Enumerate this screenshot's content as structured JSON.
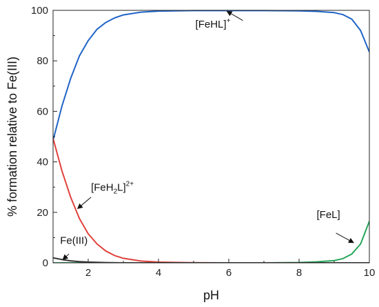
{
  "chart_data": {
    "type": "line",
    "xlabel": "pH",
    "ylabel": "% formation relative to Fe(III)",
    "xlim": [
      1,
      10
    ],
    "ylim": [
      0,
      100
    ],
    "x_ticks": [
      2,
      4,
      6,
      8,
      10
    ],
    "x_tick_labels": [
      "2",
      "4",
      "6",
      "8",
      "10"
    ],
    "y_ticks": [
      0,
      20,
      40,
      60,
      80,
      100
    ],
    "y_tick_labels": [
      "0",
      "20",
      "40",
      "60",
      "80",
      "100"
    ],
    "grid": false,
    "series": [
      {
        "color": "#1f63c6",
        "points": [
          [
            1.0,
            48.5
          ],
          [
            1.25,
            62
          ],
          [
            1.5,
            73
          ],
          [
            1.75,
            82
          ],
          [
            2.0,
            88
          ],
          [
            2.25,
            92.5
          ],
          [
            2.5,
            95.2
          ],
          [
            2.75,
            97
          ],
          [
            3.0,
            98.2
          ],
          [
            3.5,
            99.3
          ],
          [
            4.0,
            99.7
          ],
          [
            5.0,
            99.9
          ],
          [
            6.0,
            99.9
          ],
          [
            7.0,
            99.9
          ],
          [
            8.0,
            99.8
          ],
          [
            8.5,
            99.6
          ],
          [
            9.0,
            99.1
          ],
          [
            9.25,
            98.3
          ],
          [
            9.5,
            96.5
          ],
          [
            9.75,
            92
          ],
          [
            10.0,
            83.5
          ]
        ]
      },
      {
        "color": "#e0403a",
        "points": [
          [
            1.0,
            49.3
          ],
          [
            1.25,
            36.5
          ],
          [
            1.5,
            26
          ],
          [
            1.75,
            17.5
          ],
          [
            2.0,
            11.5
          ],
          [
            2.25,
            7.5
          ],
          [
            2.5,
            4.7
          ],
          [
            2.75,
            2.9
          ],
          [
            3.0,
            1.8
          ],
          [
            3.5,
            0.7
          ],
          [
            4.0,
            0.3
          ],
          [
            5.0,
            0.05
          ],
          [
            6.0,
            0
          ],
          [
            7.0,
            0
          ],
          [
            8.0,
            0
          ],
          [
            9.0,
            0
          ],
          [
            10.0,
            0
          ]
        ]
      },
      {
        "color": "#25a55a",
        "points": [
          [
            1.0,
            0
          ],
          [
            7.0,
            0
          ],
          [
            8.0,
            0.15
          ],
          [
            8.5,
            0.4
          ],
          [
            9.0,
            0.9
          ],
          [
            9.25,
            1.7
          ],
          [
            9.5,
            3.5
          ],
          [
            9.75,
            7.5
          ],
          [
            10.0,
            16.5
          ]
        ]
      },
      {
        "color": "#333333",
        "points": [
          [
            1.0,
            2.0
          ],
          [
            1.25,
            1.3
          ],
          [
            1.5,
            0.8
          ],
          [
            1.75,
            0.5
          ],
          [
            2.0,
            0.3
          ],
          [
            2.5,
            0.1
          ],
          [
            3.0,
            0
          ],
          [
            10.0,
            0
          ]
        ]
      }
    ],
    "annotations": [
      {
        "base": "[FeHL]",
        "sup": "+",
        "text_at": [
          5.05,
          93.2
        ],
        "arrow_from": [
          6.4,
          96.0
        ],
        "arrow_to": [
          5.95,
          99.6
        ]
      },
      {
        "base": "[FeH",
        "sub": "2",
        "tail": "L]",
        "sup": "2+",
        "text_at": [
          2.08,
          28.6
        ],
        "arrow_from": [
          2.08,
          26.0
        ],
        "arrow_to": [
          1.7,
          21.5
        ]
      },
      {
        "base": "[FeL]",
        "text_at": [
          8.5,
          17.8
        ],
        "arrow_from": [
          9.05,
          11.8
        ],
        "arrow_to": [
          9.55,
          8.0
        ]
      },
      {
        "base": "Fe(III)",
        "text_at": [
          1.2,
          7.5
        ],
        "arrow_from": [
          1.45,
          3.5
        ],
        "arrow_to": [
          1.28,
          1.3
        ]
      }
    ]
  }
}
